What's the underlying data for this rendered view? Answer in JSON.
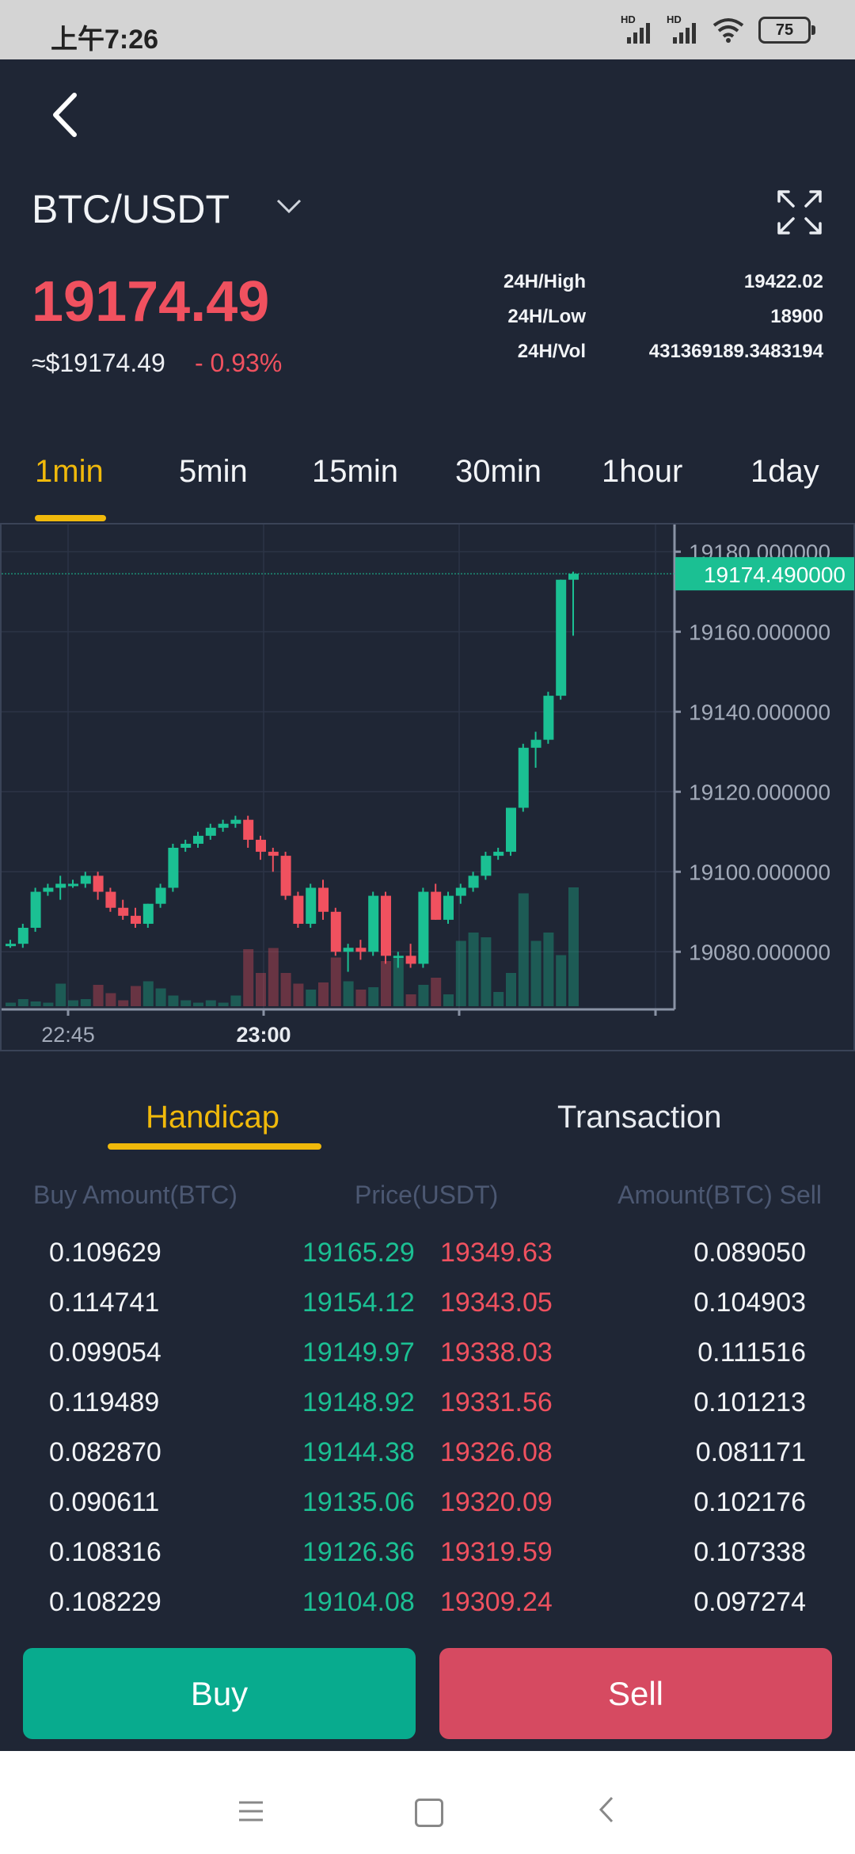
{
  "status_bar": {
    "time": "上午7:26",
    "battery": "75",
    "signal_label": "HD"
  },
  "header": {
    "pair": "BTC/USDT"
  },
  "ticker": {
    "price": "19174.49",
    "usd_price": "≈$19174.49",
    "change": "- 0.93%",
    "stats": [
      {
        "label": "24H/High",
        "value": "19422.02"
      },
      {
        "label": "24H/Low",
        "value": "18900"
      },
      {
        "label": "24H/Vol",
        "value": "431369189.3483194"
      }
    ]
  },
  "interval_tabs": [
    "1min",
    "5min",
    "15min",
    "30min",
    "1hour",
    "1day"
  ],
  "active_interval": "1min",
  "colors": {
    "up": "#1bc093",
    "down": "#f0515f",
    "accent": "#f0b90b",
    "background": "#1f2635"
  },
  "chart_data": {
    "type": "candlestick",
    "current_price_label": "19174.490000",
    "y_tick_labels": [
      "19180.000000",
      "19160.000000",
      "19140.000000",
      "19120.000000",
      "19100.000000",
      "19080.000000"
    ],
    "y_ticks": [
      19180,
      19160,
      19140,
      19120,
      19100,
      19080
    ],
    "ylim": [
      19065.6,
      19186.8
    ],
    "x_tick_labels": [
      "22:45",
      "23:00"
    ],
    "candles": [
      {
        "o": 19082,
        "h": 19083,
        "l": 19081,
        "c": 19082,
        "v": 3
      },
      {
        "o": 19082,
        "h": 19087,
        "l": 19081,
        "c": 19086,
        "v": 6
      },
      {
        "o": 19086,
        "h": 19096,
        "l": 19085,
        "c": 19095,
        "v": 4
      },
      {
        "o": 19095,
        "h": 19097,
        "l": 19094,
        "c": 19096,
        "v": 3
      },
      {
        "o": 19096,
        "h": 19099,
        "l": 19093,
        "c": 19097,
        "v": 19
      },
      {
        "o": 19097,
        "h": 19098,
        "l": 19096,
        "c": 19097,
        "v": 5
      },
      {
        "o": 19097,
        "h": 19100,
        "l": 19096,
        "c": 19099,
        "v": 6
      },
      {
        "o": 19099,
        "h": 19100,
        "l": 19093,
        "c": 19095,
        "v": 18
      },
      {
        "o": 19095,
        "h": 19096,
        "l": 19090,
        "c": 19091,
        "v": 11
      },
      {
        "o": 19091,
        "h": 19093,
        "l": 19088,
        "c": 19089,
        "v": 5
      },
      {
        "o": 19089,
        "h": 19091,
        "l": 19086,
        "c": 19087,
        "v": 17
      },
      {
        "o": 19087,
        "h": 19092,
        "l": 19086,
        "c": 19092,
        "v": 21
      },
      {
        "o": 19092,
        "h": 19097,
        "l": 19091,
        "c": 19096,
        "v": 15
      },
      {
        "o": 19096,
        "h": 19107,
        "l": 19095,
        "c": 19106,
        "v": 9
      },
      {
        "o": 19106,
        "h": 19108,
        "l": 19105,
        "c": 19107,
        "v": 5
      },
      {
        "o": 19107,
        "h": 19110,
        "l": 19106,
        "c": 19109,
        "v": 3
      },
      {
        "o": 19109,
        "h": 19112,
        "l": 19108,
        "c": 19111,
        "v": 5
      },
      {
        "o": 19111,
        "h": 19113,
        "l": 19110,
        "c": 19112,
        "v": 3
      },
      {
        "o": 19112,
        "h": 19114,
        "l": 19111,
        "c": 19113,
        "v": 9
      },
      {
        "o": 19113,
        "h": 19114,
        "l": 19106,
        "c": 19108,
        "v": 48
      },
      {
        "o": 19108,
        "h": 19109,
        "l": 19103,
        "c": 19105,
        "v": 28
      },
      {
        "o": 19105,
        "h": 19106,
        "l": 19100,
        "c": 19104,
        "v": 49
      },
      {
        "o": 19104,
        "h": 19105,
        "l": 19093,
        "c": 19094,
        "v": 28
      },
      {
        "o": 19094,
        "h": 19095,
        "l": 19086,
        "c": 19087,
        "v": 19
      },
      {
        "o": 19087,
        "h": 19097,
        "l": 19086,
        "c": 19096,
        "v": 14
      },
      {
        "o": 19096,
        "h": 19098,
        "l": 19088,
        "c": 19090,
        "v": 20
      },
      {
        "o": 19090,
        "h": 19091,
        "l": 19079,
        "c": 19080,
        "v": 41
      },
      {
        "o": 19080,
        "h": 19082,
        "l": 19075,
        "c": 19081,
        "v": 21
      },
      {
        "o": 19081,
        "h": 19083,
        "l": 19078,
        "c": 19080,
        "v": 14
      },
      {
        "o": 19080,
        "h": 19095,
        "l": 19079,
        "c": 19094,
        "v": 16
      },
      {
        "o": 19094,
        "h": 19095,
        "l": 19077,
        "c": 19079,
        "v": 38
      },
      {
        "o": 19079,
        "h": 19080,
        "l": 19076,
        "c": 19079,
        "v": 40
      },
      {
        "o": 19079,
        "h": 19082,
        "l": 19076,
        "c": 19077,
        "v": 10
      },
      {
        "o": 19077,
        "h": 19096,
        "l": 19076,
        "c": 19095,
        "v": 18
      },
      {
        "o": 19095,
        "h": 19097,
        "l": 19088,
        "c": 19088,
        "v": 24
      },
      {
        "o": 19088,
        "h": 19095,
        "l": 19087,
        "c": 19094,
        "v": 10
      },
      {
        "o": 19094,
        "h": 19097,
        "l": 19092,
        "c": 19096,
        "v": 55
      },
      {
        "o": 19096,
        "h": 19100,
        "l": 19095,
        "c": 19099,
        "v": 62
      },
      {
        "o": 19099,
        "h": 19105,
        "l": 19098,
        "c": 19104,
        "v": 58
      },
      {
        "o": 19104,
        "h": 19106,
        "l": 19103,
        "c": 19105,
        "v": 12
      },
      {
        "o": 19105,
        "h": 19116,
        "l": 19104,
        "c": 19116,
        "v": 28
      },
      {
        "o": 19116,
        "h": 19132,
        "l": 19115,
        "c": 19131,
        "v": 95
      },
      {
        "o": 19131,
        "h": 19135,
        "l": 19126,
        "c": 19133,
        "v": 55
      },
      {
        "o": 19133,
        "h": 19145,
        "l": 19132,
        "c": 19144,
        "v": 62
      },
      {
        "o": 19144,
        "h": 19173,
        "l": 19143,
        "c": 19173,
        "v": 43
      },
      {
        "o": 19173,
        "h": 19175,
        "l": 19159,
        "c": 19174.49,
        "v": 100
      }
    ]
  },
  "subtabs": [
    "Handicap",
    "Transaction"
  ],
  "active_subtab": "Handicap",
  "orderbook": {
    "headers": {
      "buy": "Buy  Amount(BTC)",
      "price": "Price(USDT)",
      "sell": "Amount(BTC)  Sell"
    },
    "rows": [
      {
        "buy_amount": "0.109629",
        "buy_price": "19165.29",
        "sell_price": "19349.63",
        "sell_amount": "0.089050"
      },
      {
        "buy_amount": "0.114741",
        "buy_price": "19154.12",
        "sell_price": "19343.05",
        "sell_amount": "0.104903"
      },
      {
        "buy_amount": "0.099054",
        "buy_price": "19149.97",
        "sell_price": "19338.03",
        "sell_amount": "0.111516"
      },
      {
        "buy_amount": "0.119489",
        "buy_price": "19148.92",
        "sell_price": "19331.56",
        "sell_amount": "0.101213"
      },
      {
        "buy_amount": "0.082870",
        "buy_price": "19144.38",
        "sell_price": "19326.08",
        "sell_amount": "0.081171"
      },
      {
        "buy_amount": "0.090611",
        "buy_price": "19135.06",
        "sell_price": "19320.09",
        "sell_amount": "0.102176"
      },
      {
        "buy_amount": "0.108316",
        "buy_price": "19126.36",
        "sell_price": "19319.59",
        "sell_amount": "0.107338"
      },
      {
        "buy_amount": "0.108229",
        "buy_price": "19104.08",
        "sell_price": "19309.24",
        "sell_amount": "0.097274"
      }
    ]
  },
  "actions": {
    "buy": "Buy",
    "sell": "Sell"
  }
}
